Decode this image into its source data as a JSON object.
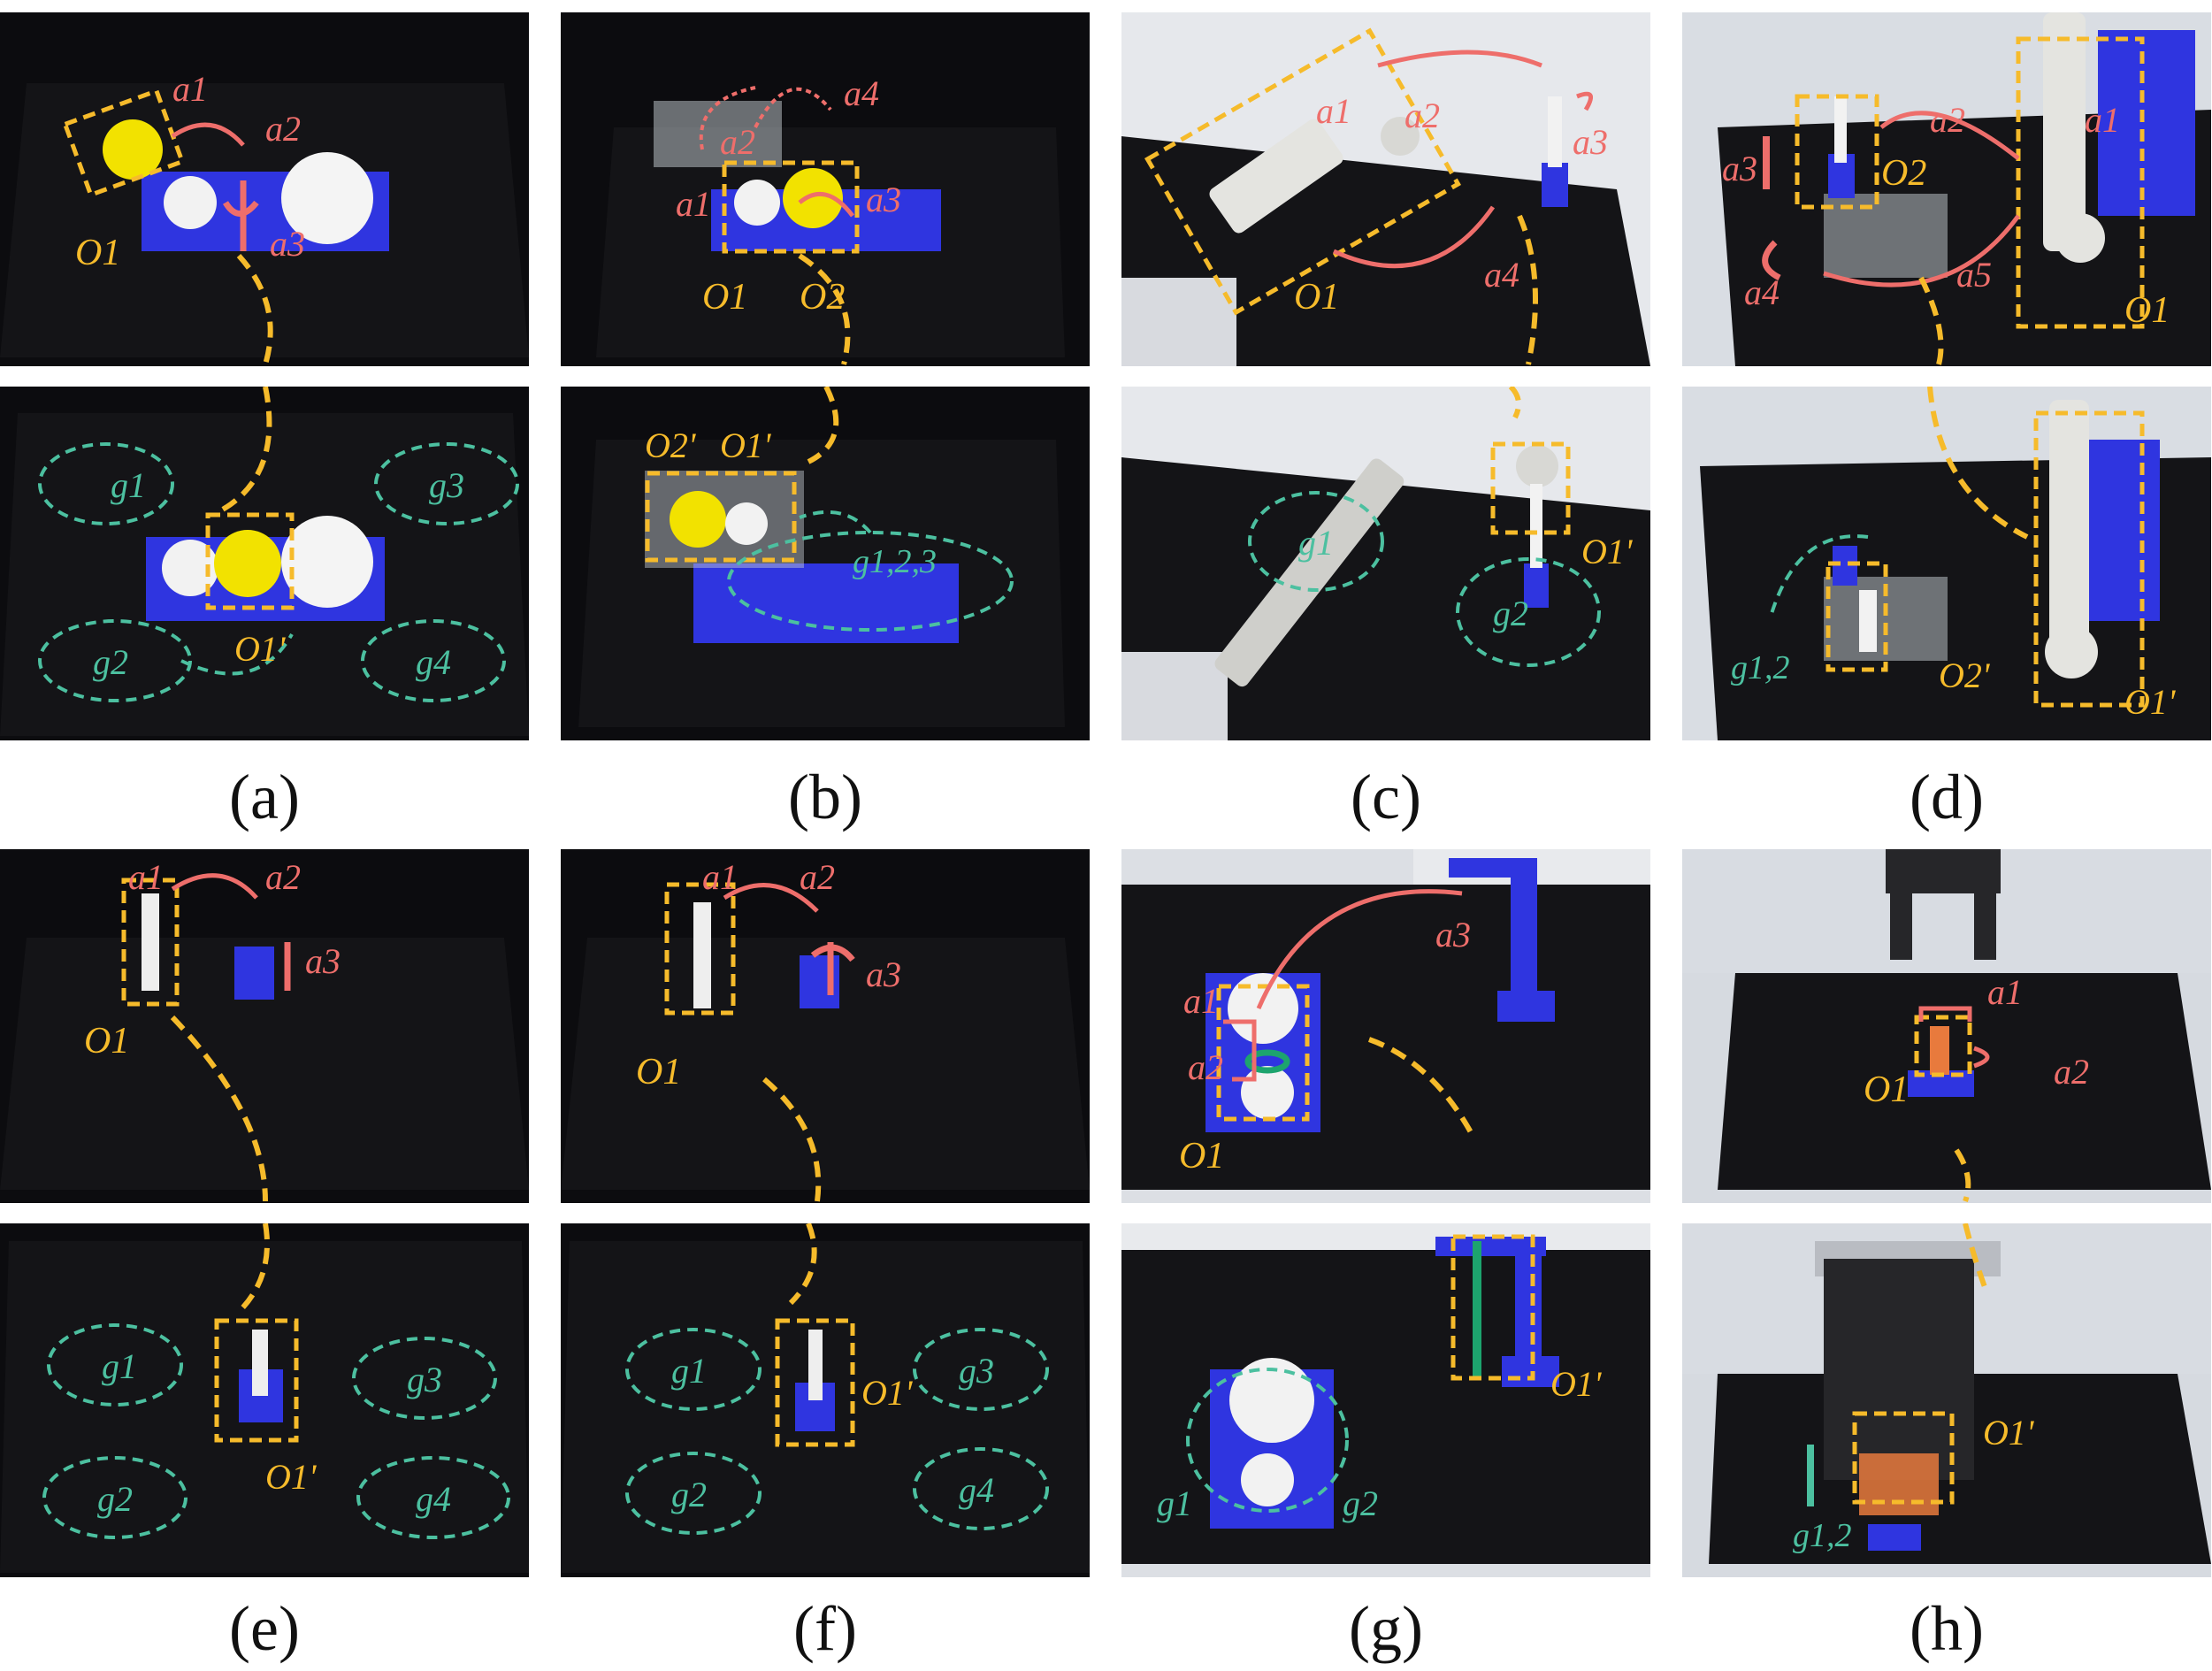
{
  "colors": {
    "object_box": "#f6bb2b",
    "action_arrow": "#ee6e6b",
    "goal_region": "#4cc0a0",
    "fixture_blue": "#2f35e0",
    "table": "#141417"
  },
  "panels": [
    {
      "caption": "(a)",
      "top": {
        "action_labels": [
          "a1",
          "a2",
          "a3"
        ],
        "object_labels": [
          "O1"
        ]
      },
      "bottom": {
        "object_labels": [
          "O1'"
        ],
        "goal_labels": [
          "g1",
          "g2",
          "g3",
          "g4"
        ]
      }
    },
    {
      "caption": "(b)",
      "top": {
        "action_labels": [
          "a1",
          "a2",
          "a3",
          "a4"
        ],
        "object_labels": [
          "O1",
          "O2"
        ]
      },
      "bottom": {
        "object_labels": [
          "O2'",
          "O1'"
        ],
        "goal_labels": [
          "g1,2,3"
        ]
      }
    },
    {
      "caption": "(c)",
      "top": {
        "action_labels": [
          "a1",
          "a2",
          "a3",
          "a4"
        ],
        "object_labels": [
          "O1"
        ]
      },
      "bottom": {
        "object_labels": [
          "O1'"
        ],
        "goal_labels": [
          "g1",
          "g2"
        ]
      }
    },
    {
      "caption": "(d)",
      "top": {
        "action_labels": [
          "a1",
          "a2",
          "a3",
          "a4",
          "a5"
        ],
        "object_labels": [
          "O1",
          "O2"
        ]
      },
      "bottom": {
        "object_labels": [
          "O2'",
          "O1'"
        ],
        "goal_labels": [
          "g1,2"
        ]
      }
    },
    {
      "caption": "(e)",
      "top": {
        "action_labels": [
          "a1",
          "a2",
          "a3"
        ],
        "object_labels": [
          "O1"
        ]
      },
      "bottom": {
        "object_labels": [
          "O1'"
        ],
        "goal_labels": [
          "g1",
          "g2",
          "g3",
          "g4"
        ]
      }
    },
    {
      "caption": "(f)",
      "top": {
        "action_labels": [
          "a1",
          "a2",
          "a3"
        ],
        "object_labels": [
          "O1"
        ]
      },
      "bottom": {
        "object_labels": [
          "O1'"
        ],
        "goal_labels": [
          "g1",
          "g2",
          "g3",
          "g4"
        ]
      }
    },
    {
      "caption": "(g)",
      "top": {
        "action_labels": [
          "a1",
          "a2",
          "a3"
        ],
        "object_labels": [
          "O1"
        ]
      },
      "bottom": {
        "object_labels": [
          "O1'"
        ],
        "goal_labels": [
          "g1",
          "g2"
        ]
      }
    },
    {
      "caption": "(h)",
      "top": {
        "action_labels": [
          "a1",
          "a2"
        ],
        "object_labels": [
          "O1"
        ]
      },
      "bottom": {
        "object_labels": [
          "O1'"
        ],
        "goal_labels": [
          "g1,2"
        ]
      }
    }
  ]
}
